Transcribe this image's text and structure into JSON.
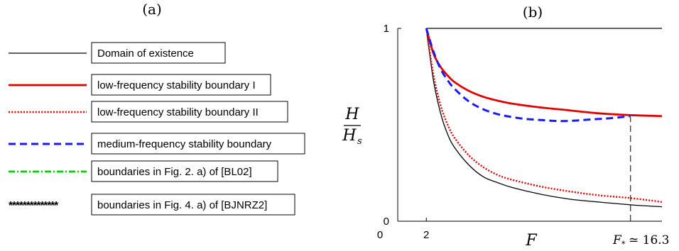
{
  "panel_a": {
    "label": "(a)",
    "legend": [
      {
        "text": "Domain of existence",
        "color": "#000000",
        "style": "solid-thin"
      },
      {
        "text": "low-frequency stability boundary I",
        "color": "#e00000",
        "style": "solid-thick"
      },
      {
        "text": "low-frequency stability boundary II",
        "color": "#e00000",
        "style": "dotted"
      },
      {
        "text": "medium-frequency stability boundary",
        "color": "#1a1aff",
        "style": "dashed"
      },
      {
        "text": "boundaries in Fig. 2. a) of [BL02]",
        "color": "#00d000",
        "style": "dashdot"
      },
      {
        "text": "boundaries in Fig. 4. a) of [BJNRZ2]",
        "color": "#000000",
        "style": "stars"
      }
    ]
  },
  "panel_b": {
    "label": "(b)",
    "xlabel": "F",
    "ylabel_num": "H",
    "ylabel_den": "H",
    "ylabel_den_sub": "s",
    "xtick_labels": [
      "0",
      "2"
    ],
    "ytick_labels": [
      "0",
      "1"
    ],
    "fstar_label": "F",
    "fstar_sub": "*",
    "fstar_value": "≃ 16.3"
  },
  "chart_data": {
    "type": "line",
    "xlim": [
      0,
      18.5
    ],
    "ylim": [
      0,
      1
    ],
    "grid": false,
    "legend_placement": "left panel (a)",
    "vertical_marker": {
      "x": 16.3,
      "y_from": 0,
      "y_to": 0.54
    },
    "series": [
      {
        "name": "Domain of existence (upper)",
        "color": "#000000",
        "style": "solid-thin",
        "x": [
          2,
          18.5
        ],
        "y": [
          1,
          1
        ]
      },
      {
        "name": "Domain of existence",
        "color": "#000000",
        "style": "solid-thin",
        "x": [
          2,
          2.5,
          3,
          3.5,
          4,
          5,
          6,
          7,
          8,
          10,
          12,
          14,
          16.3,
          18.5
        ],
        "y": [
          1,
          0.73,
          0.56,
          0.45,
          0.38,
          0.29,
          0.23,
          0.2,
          0.175,
          0.14,
          0.115,
          0.1,
          0.085,
          0.075
        ]
      },
      {
        "name": "low-frequency stability boundary I",
        "color": "#e00000",
        "style": "solid-thick",
        "x": [
          2,
          2.5,
          3,
          3.5,
          4,
          5,
          6,
          7,
          8,
          10,
          12,
          14,
          16.3,
          18.5
        ],
        "y": [
          1,
          0.87,
          0.8,
          0.755,
          0.72,
          0.675,
          0.645,
          0.625,
          0.61,
          0.59,
          0.575,
          0.56,
          0.55,
          0.545
        ]
      },
      {
        "name": "low-frequency stability boundary II",
        "color": "#e00000",
        "style": "dotted",
        "x": [
          2,
          2.5,
          3,
          3.5,
          4,
          5,
          6,
          7,
          8,
          10,
          12,
          14,
          16.3,
          18.5
        ],
        "y": [
          1,
          0.76,
          0.6,
          0.5,
          0.43,
          0.34,
          0.28,
          0.24,
          0.215,
          0.18,
          0.155,
          0.135,
          0.12,
          0.1
        ]
      },
      {
        "name": "medium-frequency stability boundary",
        "color": "#1a1aff",
        "style": "dashed",
        "x": [
          2,
          2.5,
          3,
          3.5,
          4,
          5,
          6,
          7,
          8,
          9,
          10,
          11,
          12,
          13,
          14,
          15,
          16.3
        ],
        "y": [
          1,
          0.88,
          0.79,
          0.73,
          0.685,
          0.62,
          0.58,
          0.555,
          0.54,
          0.53,
          0.525,
          0.52,
          0.52,
          0.525,
          0.53,
          0.535,
          0.545
        ]
      }
    ]
  }
}
